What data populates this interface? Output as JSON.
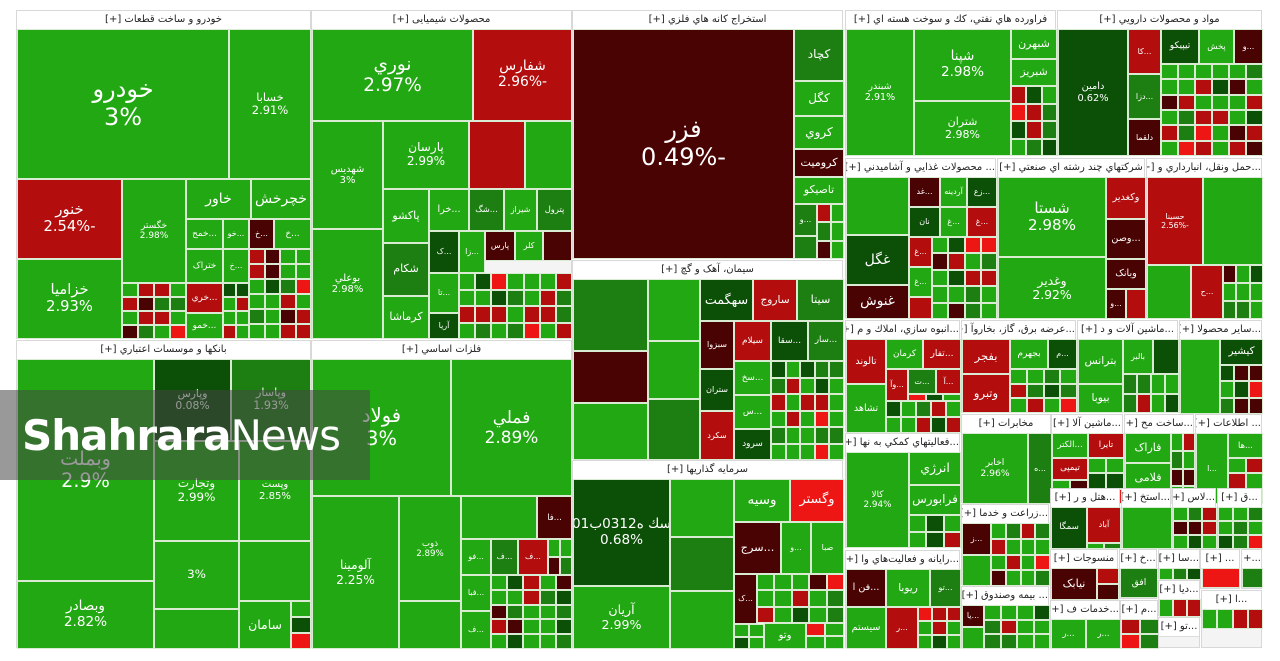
{
  "colors": {
    "g": "#22a812",
    "m": "#1d7f12",
    "d": "#0c4f07",
    "r": "#b30d0d",
    "dr": "#4a0303",
    "br": "#ee1515"
  },
  "watermark": {
    "brand_bold": "Shahrara",
    "brand_light": "News"
  },
  "sectors": [
    {
      "title": "خودرو و ساخت قطعات [+]",
      "tiles": [
        {
          "label": "خودرو",
          "value": "3%",
          "color": "g"
        },
        {
          "label": "خسابا",
          "value": "2.91%",
          "color": "g"
        },
        {
          "label": "خنور",
          "value": "-2.54%",
          "color": "r"
        },
        {
          "label": "خزامیا",
          "value": "2.93%",
          "color": "g"
        },
        {
          "label": "خگستر",
          "value": "2.98%",
          "color": "g"
        },
        {
          "label": "خاور",
          "value": "",
          "color": "g"
        },
        {
          "label": "خچرخش",
          "value": "",
          "color": "g"
        },
        {
          "label": "...خمح",
          "value": "",
          "color": "g"
        },
        {
          "label": "...خو",
          "value": "",
          "color": "g"
        },
        {
          "label": "...خ",
          "value": "",
          "color": "dr"
        },
        {
          "label": "...خ",
          "value": "",
          "color": "g"
        },
        {
          "label": "ختراک",
          "value": "",
          "color": "g"
        },
        {
          "label": "...خ",
          "value": "",
          "color": "g"
        },
        {
          "label": "...خري",
          "value": "",
          "color": "r"
        },
        {
          "label": "...خمو",
          "value": "",
          "color": "g"
        }
      ]
    },
    {
      "title": "محصولات شیمیایی [+]",
      "tiles": [
        {
          "label": "نوري",
          "value": "2.97%",
          "color": "g"
        },
        {
          "label": "شفارس",
          "value": "-2.96%",
          "color": "r"
        },
        {
          "label": "شهدیس",
          "value": "3%",
          "color": "g"
        },
        {
          "label": "بوعلي",
          "value": "2.98%",
          "color": "g"
        },
        {
          "label": "پارسان",
          "value": "2.99%",
          "color": "g"
        },
        {
          "label": "",
          "value": "",
          "color": "r"
        },
        {
          "label": "",
          "value": "",
          "color": "g"
        },
        {
          "label": "پاکشو",
          "value": "",
          "color": "g"
        },
        {
          "label": "...خرا",
          "value": "",
          "color": "g"
        },
        {
          "label": "...شگ",
          "value": "",
          "color": "m"
        },
        {
          "label": "شیراز",
          "value": "",
          "color": "g"
        },
        {
          "label": "پترول",
          "value": "",
          "color": "m"
        },
        {
          "label": "شکام",
          "value": "",
          "color": "m"
        },
        {
          "label": "کرماشا",
          "value": "",
          "color": "g"
        },
        {
          "label": "...ک",
          "value": "",
          "color": "d"
        },
        {
          "label": "...زا",
          "value": "",
          "color": "g"
        },
        {
          "label": "پارس",
          "value": "",
          "color": "dr"
        },
        {
          "label": "کلر",
          "value": "",
          "color": "g"
        },
        {
          "label": "",
          "value": "",
          "color": "dr"
        },
        {
          "label": "...تا",
          "value": "",
          "color": "g"
        },
        {
          "label": "آريا",
          "value": "",
          "color": "d"
        }
      ]
    },
    {
      "title": "استخراج کانه هاي فلزي [+]",
      "tiles": [
        {
          "label": "فزر",
          "value": "-0.49%",
          "color": "dr"
        },
        {
          "label": "کچاد",
          "value": "",
          "color": "m"
        },
        {
          "label": "کگل",
          "value": "",
          "color": "g"
        },
        {
          "label": "کروي",
          "value": "",
          "color": "g"
        },
        {
          "label": "کرومیت",
          "value": "",
          "color": "dr"
        },
        {
          "label": "تاصیکو",
          "value": "",
          "color": "g"
        },
        {
          "label": "...و",
          "value": "",
          "color": "m"
        }
      ]
    },
    {
      "title": "سیمان، آهک و گچ [+]",
      "tiles": [
        {
          "label": "",
          "value": "",
          "color": "m"
        },
        {
          "label": "",
          "value": "",
          "color": "dr"
        },
        {
          "label": "",
          "value": "",
          "color": "g"
        },
        {
          "label": "",
          "value": "",
          "color": "g"
        },
        {
          "label": "",
          "value": "",
          "color": "g"
        },
        {
          "label": "",
          "value": "",
          "color": "m"
        },
        {
          "label": "سهگمت",
          "value": "",
          "color": "d"
        },
        {
          "label": "ساروج",
          "value": "",
          "color": "r"
        },
        {
          "label": "سیتا",
          "value": "",
          "color": "m"
        },
        {
          "label": "سبزوا",
          "value": "",
          "color": "dr"
        },
        {
          "label": "سیلام",
          "value": "",
          "color": "r"
        },
        {
          "label": "...سقا",
          "value": "",
          "color": "d"
        },
        {
          "label": "...سار",
          "value": "",
          "color": "m"
        },
        {
          "label": "ستران",
          "value": "",
          "color": "d"
        },
        {
          "label": "سکرد",
          "value": "",
          "color": "r"
        },
        {
          "label": "...سخ",
          "value": "",
          "color": "g"
        },
        {
          "label": "...س",
          "value": "",
          "color": "g"
        },
        {
          "label": "سرود",
          "value": "",
          "color": "d"
        }
      ]
    },
    {
      "title": "سرمایه گذاریها [+]",
      "tiles": [
        {
          "label": "سك ه0312ب01",
          "value": "0.68%",
          "color": "d"
        },
        {
          "label": "آریان",
          "value": "2.99%",
          "color": "g"
        },
        {
          "label": "",
          "value": "",
          "color": "g"
        },
        {
          "label": "",
          "value": "",
          "color": "m"
        },
        {
          "label": "",
          "value": "",
          "color": "g"
        },
        {
          "label": "وسیه",
          "value": "",
          "color": "g"
        },
        {
          "label": "وگستر",
          "value": "",
          "color": "br"
        },
        {
          "label": "...سرج",
          "value": "",
          "color": "dr"
        },
        {
          "label": "...و",
          "value": "",
          "color": "g"
        },
        {
          "label": "صبا",
          "value": "",
          "color": "g"
        },
        {
          "label": "...ک",
          "value": "",
          "color": "dr"
        },
        {
          "label": "وتو",
          "value": "",
          "color": "g"
        }
      ]
    },
    {
      "title": "فراورده هاي نفتي، کك و سوخت هسته اي [+]",
      "tiles": [
        {
          "label": "شبندر",
          "value": "2.91%",
          "color": "g"
        },
        {
          "label": "شپنا",
          "value": "2.98%",
          "color": "g"
        },
        {
          "label": "شتران",
          "value": "2.98%",
          "color": "g"
        },
        {
          "label": "شبهرن",
          "value": "",
          "color": "g"
        },
        {
          "label": "شبریز",
          "value": "",
          "color": "g"
        }
      ]
    },
    {
      "title": "مواد و محصولات دارويي [+]",
      "tiles": [
        {
          "label": "دامین",
          "value": "0.62%",
          "color": "d"
        },
        {
          "label": "...کا",
          "value": "",
          "color": "r"
        },
        {
          "label": "تیپیکو",
          "value": "",
          "color": "d"
        },
        {
          "label": "پخش",
          "value": "",
          "color": "g"
        },
        {
          "label": "...و",
          "value": "",
          "color": "dr"
        },
        {
          "label": "...دزا",
          "value": "",
          "color": "m"
        },
        {
          "label": "دلقما",
          "value": "",
          "color": "dr"
        }
      ]
    },
    {
      "title": "... محصولات غذايي و آشاميدني [+]",
      "tiles": [
        {
          "label": "",
          "value": "",
          "color": "g"
        },
        {
          "label": "غگل",
          "value": "",
          "color": "d"
        },
        {
          "label": "غنوش",
          "value": "",
          "color": "dr"
        },
        {
          "label": "...غد",
          "value": "",
          "color": "dr"
        },
        {
          "label": "آردینه",
          "value": "",
          "color": "g"
        },
        {
          "label": "...زع",
          "value": "",
          "color": "d"
        },
        {
          "label": "نان",
          "value": "",
          "color": "d"
        },
        {
          "label": "...غ",
          "value": "",
          "color": "g"
        },
        {
          "label": "...غ",
          "value": "",
          "color": "r"
        },
        {
          "label": "...غ",
          "value": "",
          "color": "r"
        },
        {
          "label": "...غ",
          "value": "",
          "color": "g"
        }
      ]
    },
    {
      "title": "شرکتهاي چند رشته اي صنعتي [+]",
      "tiles": [
        {
          "label": "شستا",
          "value": "2.98%",
          "color": "g"
        },
        {
          "label": "وغدیر",
          "value": "2.92%",
          "color": "g"
        },
        {
          "label": "وکغدیر",
          "value": "",
          "color": "r"
        },
        {
          "label": "...وصن",
          "value": "",
          "color": "dr"
        },
        {
          "label": "وبانک",
          "value": "",
          "color": "dr"
        },
        {
          "label": "...و",
          "value": "",
          "color": "dr"
        },
        {
          "label": "",
          "value": "",
          "color": "r"
        }
      ]
    },
    {
      "title": "...حمل ونقل، انبارداري و [+]",
      "tiles": [
        {
          "label": "حسینا",
          "value": "-2.56%",
          "color": "r"
        },
        {
          "label": "",
          "value": "",
          "color": "g"
        },
        {
          "label": "",
          "value": "",
          "color": "g"
        },
        {
          "label": "...ح",
          "value": "",
          "color": "r"
        }
      ]
    },
    {
      "title": "بانکها و موسسات اعتباري [+]",
      "tiles": [
        {
          "label": "وبملت",
          "value": "2.9%",
          "color": "g"
        },
        {
          "label": "وپارس",
          "value": "0.08%",
          "color": "d"
        },
        {
          "label": "وپاسار",
          "value": "1.93%",
          "color": "m"
        },
        {
          "label": "وتجارت",
          "value": "2.99%",
          "color": "g"
        },
        {
          "label": "وپست",
          "value": "2.85%",
          "color": "g"
        },
        {
          "label": "",
          "value": "3%",
          "color": "g"
        },
        {
          "label": "",
          "value": "",
          "color": "g"
        },
        {
          "label": "وبصادر",
          "value": "2.82%",
          "color": "g"
        },
        {
          "label": "",
          "value": "",
          "color": "g"
        },
        {
          "label": "سامان",
          "value": "",
          "color": "g"
        }
      ]
    },
    {
      "title": "فلزات اساسي [+]",
      "tiles": [
        {
          "label": "فولاد",
          "value": "3%",
          "color": "g"
        },
        {
          "label": "فملي",
          "value": "2.89%",
          "color": "g"
        },
        {
          "label": "آلومینا",
          "value": "2.25%",
          "color": "g"
        },
        {
          "label": "ذوب",
          "value": "2.89%",
          "color": "g"
        },
        {
          "label": "",
          "value": "",
          "color": "g"
        },
        {
          "label": "",
          "value": "",
          "color": "g"
        },
        {
          "label": "...فا",
          "value": "",
          "color": "dr"
        },
        {
          "label": "...فو",
          "value": "",
          "color": "g"
        },
        {
          "label": "...ف",
          "value": "",
          "color": "m"
        },
        {
          "label": "...ف",
          "value": "",
          "color": "r"
        },
        {
          "label": "...فبا",
          "value": "",
          "color": "g"
        },
        {
          "label": "...ف",
          "value": "",
          "color": "g"
        }
      ]
    },
    {
      "title": "...انبوه سازي، املاك و م [+]",
      "tiles": [
        {
          "label": "تالوند",
          "value": "",
          "color": "r"
        },
        {
          "label": "تشاهد",
          "value": "",
          "color": "g"
        },
        {
          "label": "کرمان",
          "value": "",
          "color": "g"
        },
        {
          "label": "...تفار",
          "value": "",
          "color": "r"
        },
        {
          "label": "...وآ",
          "value": "",
          "color": "r"
        },
        {
          "label": "...ت",
          "value": "",
          "color": "m"
        },
        {
          "label": "...آ",
          "value": "",
          "color": "r"
        }
      ]
    },
    {
      "title": "...عرضه برق، گاز، بخاروآ [+]",
      "tiles": [
        {
          "label": "بفجر",
          "value": "",
          "color": "r"
        },
        {
          "label": "وتبرو",
          "value": "",
          "color": "r"
        },
        {
          "label": "بجهرم",
          "value": "",
          "color": "g"
        },
        {
          "label": "...م",
          "value": "",
          "color": "d"
        }
      ]
    },
    {
      "title": "...ماشین آلات و د [+]",
      "tiles": [
        {
          "label": "بترانس",
          "value": "",
          "color": "g"
        },
        {
          "label": "بالبر",
          "value": "",
          "color": "g"
        },
        {
          "label": "",
          "value": "",
          "color": "d"
        },
        {
          "label": "بیوبا",
          "value": "",
          "color": "g"
        }
      ]
    },
    {
      "title": "...سایر محصولا [+]",
      "tiles": [
        {
          "label": "",
          "value": "",
          "color": "g"
        },
        {
          "label": "کیشیر",
          "value": "",
          "color": "d"
        }
      ]
    },
    {
      "title": "...فعالیتهاي کمکي به نها [+]",
      "tiles": [
        {
          "label": "کالا",
          "value": "2.94%",
          "color": "g"
        },
        {
          "label": "انرژي",
          "value": "",
          "color": "g"
        },
        {
          "label": "فرابورس",
          "value": "",
          "color": "g"
        }
      ]
    },
    {
      "title": "...رايانه و فعاليت‌هاي وا [+]",
      "tiles": [
        {
          "label": "...فن ا",
          "value": "",
          "color": "dr"
        },
        {
          "label": "ریوبا",
          "value": "",
          "color": "g"
        },
        {
          "label": "...تو",
          "value": "",
          "color": "m"
        },
        {
          "label": "سیستم",
          "value": "",
          "color": "g"
        },
        {
          "label": "...ر",
          "value": "",
          "color": "r"
        }
      ]
    },
    {
      "title": "مخابرات [+]",
      "tiles": [
        {
          "label": "اخابر",
          "value": "2.96%",
          "color": "g"
        },
        {
          "label": "...ه",
          "value": "",
          "color": "m"
        }
      ]
    },
    {
      "title": "...ماشین آلا [+]",
      "tiles": [
        {
          "label": "...الکتر",
          "value": "",
          "color": "g"
        },
        {
          "label": "تایرا",
          "value": "",
          "color": "r"
        },
        {
          "label": "تیمپی",
          "value": "",
          "color": "r"
        }
      ]
    },
    {
      "title": "...ساخت مح [+]",
      "tiles": [
        {
          "label": "فاراک",
          "value": "",
          "color": "g"
        },
        {
          "label": "فلامی",
          "value": "",
          "color": "g"
        }
      ]
    },
    {
      "title": "... اطلاعات [+]",
      "tiles": [
        {
          "label": "...ا",
          "value": "",
          "color": "g"
        },
        {
          "label": "...ها",
          "value": "",
          "color": "g"
        }
      ]
    },
    {
      "title": "...زراعت و خدما [+]",
      "tiles": [
        {
          "label": "...ز",
          "value": "",
          "color": "dr"
        },
        {
          "label": "",
          "value": "",
          "color": "g"
        }
      ]
    },
    {
      "title": "... بیمه وصندوق [+]",
      "tiles": [
        {
          "label": "...یا",
          "value": "",
          "color": "dr"
        },
        {
          "label": "",
          "value": "",
          "color": "g"
        }
      ]
    },
    {
      "title": "...هتل و ر [+]",
      "tiles": [
        {
          "label": "سمگا",
          "value": "",
          "color": "d"
        },
        {
          "label": "آباد",
          "value": "",
          "color": "r"
        }
      ]
    },
    {
      "title": "...استخ [+]",
      "tiles": [
        {
          "label": "",
          "value": "",
          "color": "g"
        }
      ]
    },
    {
      "title": "...لاس [+]",
      "tiles": []
    },
    {
      "title": "...ق [+]",
      "tiles": []
    },
    {
      "title": "منسوجات [+]",
      "tiles": [
        {
          "label": "نیابک",
          "value": "",
          "color": "dr"
        }
      ]
    },
    {
      "title": "...خ [+]",
      "tiles": [
        {
          "label": "افق",
          "value": "",
          "color": "m"
        }
      ]
    },
    {
      "title": "...سا [+]",
      "tiles": []
    },
    {
      "title": "... [+]",
      "tiles": [
        {
          "label": "",
          "value": "",
          "color": "br"
        }
      ]
    },
    {
      "title": "...+]",
      "tiles": []
    },
    {
      "title": "...خدمات ف [+]",
      "tiles": [
        {
          "label": "...ر",
          "value": "",
          "color": "g"
        },
        {
          "label": "...ر",
          "value": "",
          "color": "g"
        }
      ]
    },
    {
      "title": "...م [+]",
      "tiles": []
    },
    {
      "title": "...دیا [+]",
      "tiles": []
    },
    {
      "title": "...تو [+]",
      "tiles": []
    },
    {
      "title": "...ا [+]",
      "tiles": []
    }
  ]
}
